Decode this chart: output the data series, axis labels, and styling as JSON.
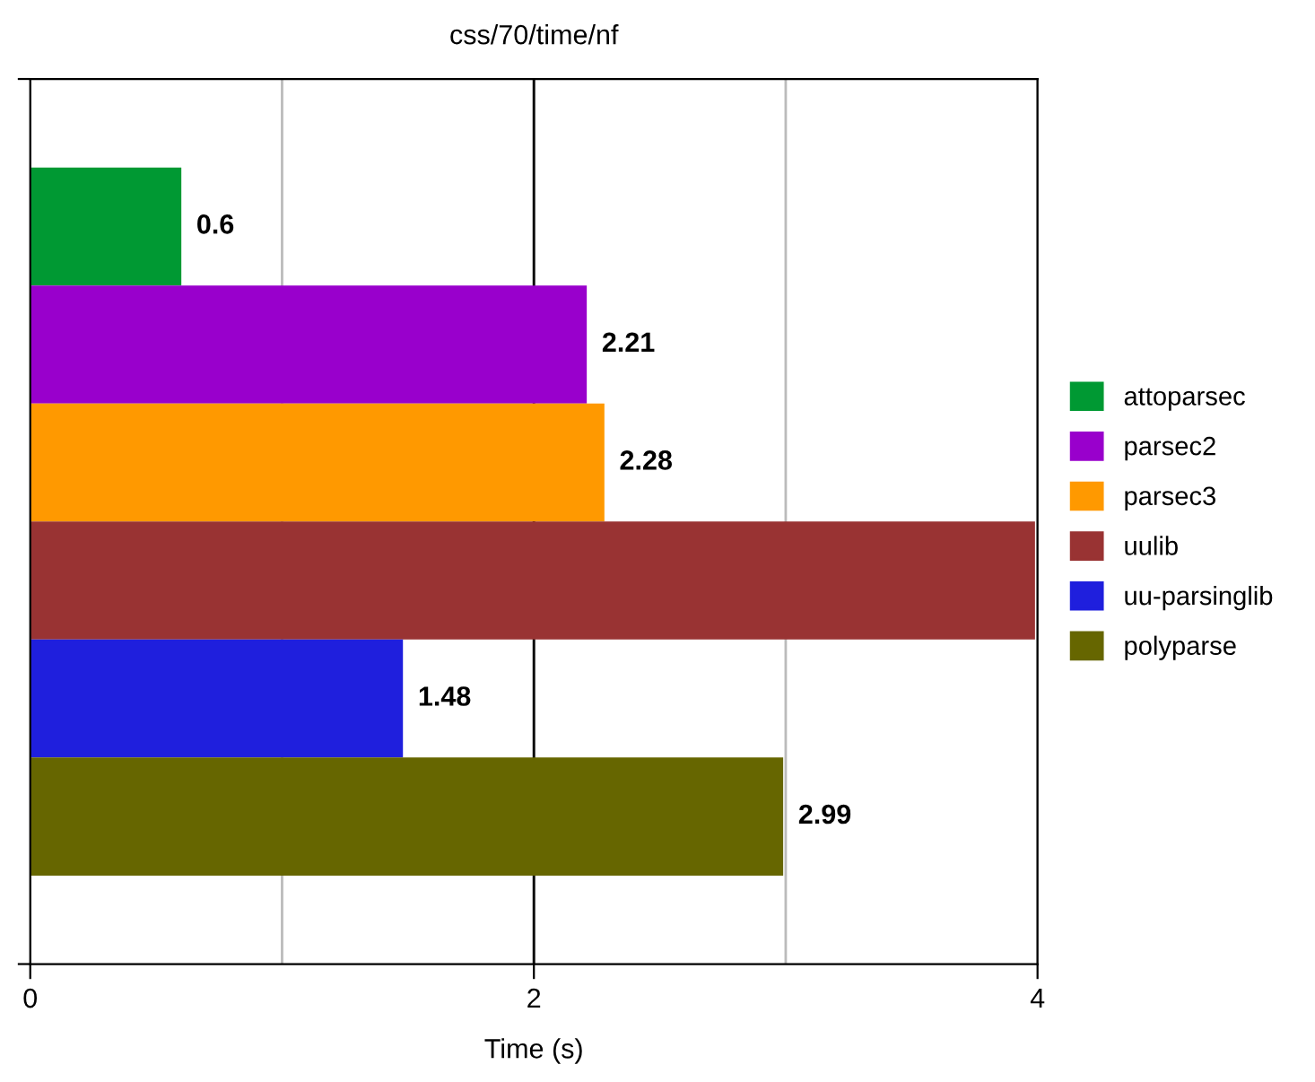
{
  "chart_data": {
    "type": "bar",
    "orientation": "horizontal",
    "title": "css/70/time/nf",
    "xlabel": "Time (s)",
    "categories": [
      null
    ],
    "series": [
      {
        "name": "attoparsec",
        "color": "#009933",
        "values": [
          0.6
        ],
        "value_labels": [
          "0.6"
        ]
      },
      {
        "name": "parsec2",
        "color": "#9900cc",
        "values": [
          2.21
        ],
        "value_labels": [
          "2.21"
        ]
      },
      {
        "name": "parsec3",
        "color": "#ff9900",
        "values": [
          2.28
        ],
        "value_labels": [
          "2.28"
        ]
      },
      {
        "name": "uulib",
        "color": "#993333",
        "values": [
          3.99
        ],
        "value_labels": [
          null
        ]
      },
      {
        "name": "uu-parsinglib",
        "color": "#1f1fdd",
        "values": [
          1.48
        ],
        "value_labels": [
          "1.48"
        ]
      },
      {
        "name": "polyparse",
        "color": "#666600",
        "values": [
          2.99
        ],
        "value_labels": [
          "2.99"
        ]
      }
    ],
    "xlim": [
      0,
      4
    ],
    "xticks": [
      0,
      {
        "value": 1,
        "label": null
      },
      2,
      {
        "value": 3,
        "label": null
      },
      4
    ],
    "grid": "x",
    "legend": "right",
    "ref_lines": [
      {
        "axis": "x",
        "value": 2,
        "color": "#000000"
      }
    ]
  }
}
